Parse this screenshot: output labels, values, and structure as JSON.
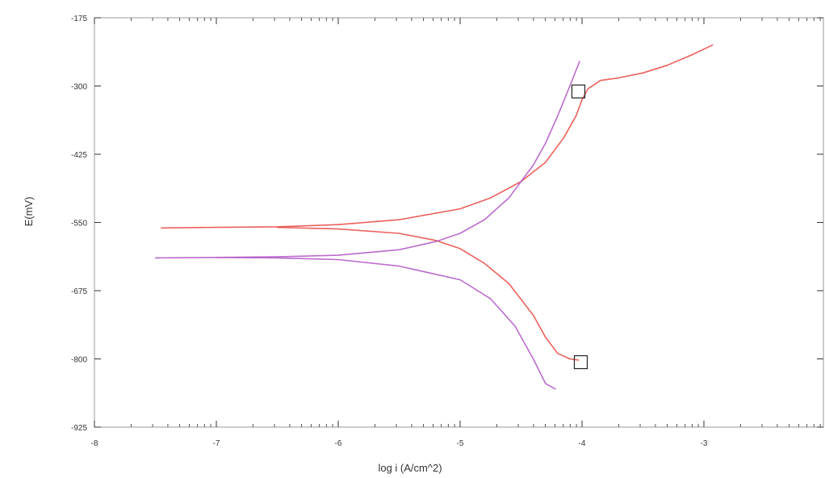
{
  "chart_data": {
    "type": "line",
    "title": "",
    "xlabel": "log i (A/cm^2)",
    "ylabel": "E(mV)",
    "xlim": [
      -8,
      -2
    ],
    "ylim": [
      -925,
      -175
    ],
    "x_ticks": [
      -8,
      -7,
      -6,
      -5,
      -4,
      -3
    ],
    "x_tick_labels": [
      "-8",
      "-7",
      "-6",
      "-5",
      "-4",
      "-3"
    ],
    "y_ticks": [
      -175,
      -300,
      -425,
      -550,
      -675,
      -800,
      -925
    ],
    "y_tick_labels": [
      "-175",
      "-300",
      "-425",
      "-550",
      "-675",
      "-800",
      "-925"
    ],
    "x_scale": "linear (decades of current density)",
    "grid": false,
    "legend": "none",
    "series": [
      {
        "color": "#f08080",
        "stroke": "#e8504a",
        "branches": [
          {
            "part": "anodic",
            "points": [
              [
                -7.45,
                -560
              ],
              [
                -7.0,
                -559
              ],
              [
                -6.5,
                -558
              ],
              [
                -6.0,
                -554
              ],
              [
                -5.5,
                -545
              ],
              [
                -5.0,
                -525
              ],
              [
                -4.75,
                -505
              ],
              [
                -4.5,
                -475
              ],
              [
                -4.3,
                -440
              ],
              [
                -4.15,
                -395
              ],
              [
                -4.05,
                -355
              ],
              [
                -4.0,
                -325
              ],
              [
                -3.95,
                -305
              ],
              [
                -3.85,
                -290
              ],
              [
                -3.7,
                -285
              ],
              [
                -3.5,
                -276
              ],
              [
                -3.3,
                -262
              ],
              [
                -3.1,
                -243
              ],
              [
                -2.93,
                -225
              ]
            ]
          },
          {
            "part": "cathodic",
            "points": [
              [
                -6.5,
                -559
              ],
              [
                -6.0,
                -562
              ],
              [
                -5.5,
                -570
              ],
              [
                -5.2,
                -583
              ],
              [
                -5.0,
                -598
              ],
              [
                -4.8,
                -625
              ],
              [
                -4.6,
                -662
              ],
              [
                -4.4,
                -720
              ],
              [
                -4.3,
                -760
              ],
              [
                -4.2,
                -790
              ],
              [
                -4.1,
                -800
              ],
              [
                -4.03,
                -802
              ]
            ]
          }
        ]
      },
      {
        "color": "#c06ad0",
        "stroke": "#b45cc8",
        "branches": [
          {
            "part": "anodic",
            "points": [
              [
                -7.5,
                -615
              ],
              [
                -7.0,
                -614
              ],
              [
                -6.5,
                -613
              ],
              [
                -6.0,
                -610
              ],
              [
                -5.5,
                -600
              ],
              [
                -5.2,
                -585
              ],
              [
                -5.0,
                -570
              ],
              [
                -4.8,
                -545
              ],
              [
                -4.6,
                -505
              ],
              [
                -4.4,
                -445
              ],
              [
                -4.3,
                -405
              ],
              [
                -4.2,
                -355
              ],
              [
                -4.1,
                -300
              ],
              [
                -4.02,
                -255
              ]
            ]
          },
          {
            "part": "cathodic",
            "points": [
              [
                -7.0,
                -614
              ],
              [
                -6.5,
                -615
              ],
              [
                -6.0,
                -618
              ],
              [
                -5.5,
                -630
              ],
              [
                -5.0,
                -655
              ],
              [
                -4.75,
                -690
              ],
              [
                -4.55,
                -740
              ],
              [
                -4.4,
                -800
              ],
              [
                -4.3,
                -845
              ],
              [
                -4.22,
                -855
              ]
            ]
          }
        ]
      }
    ],
    "markers": [
      {
        "shape": "square",
        "x": -4.03,
        "y": -310
      },
      {
        "shape": "square",
        "x": -4.01,
        "y": -806
      }
    ]
  }
}
